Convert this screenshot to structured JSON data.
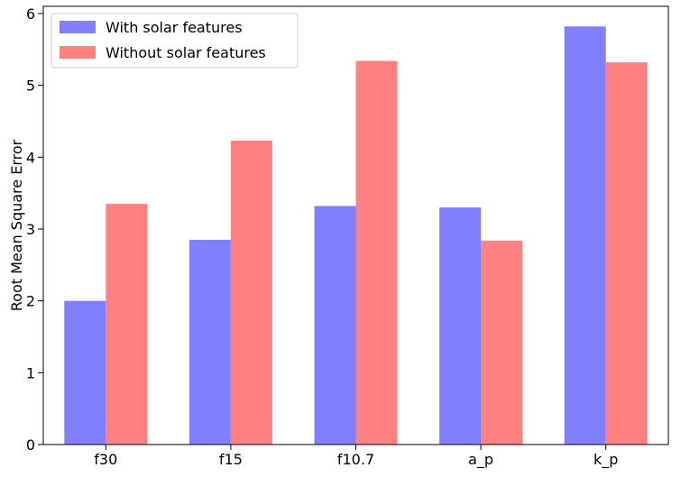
{
  "chart_data": {
    "type": "bar",
    "title": "",
    "xlabel": "",
    "ylabel": "Root Mean Square Error",
    "ylim": [
      0,
      6.1
    ],
    "yticks": [
      0,
      1,
      2,
      3,
      4,
      5,
      6
    ],
    "grid": false,
    "legend_position": "top-left",
    "categories": [
      "f30",
      "f15",
      "f10.7",
      "a_p",
      "k_p"
    ],
    "series": [
      {
        "name": "With solar features",
        "color": "#8080ff",
        "values": [
          2.0,
          2.85,
          3.32,
          3.3,
          5.82
        ]
      },
      {
        "name": "Without solar features",
        "color": "#ff8080",
        "values": [
          3.35,
          4.23,
          5.34,
          2.84,
          5.32
        ]
      }
    ]
  }
}
